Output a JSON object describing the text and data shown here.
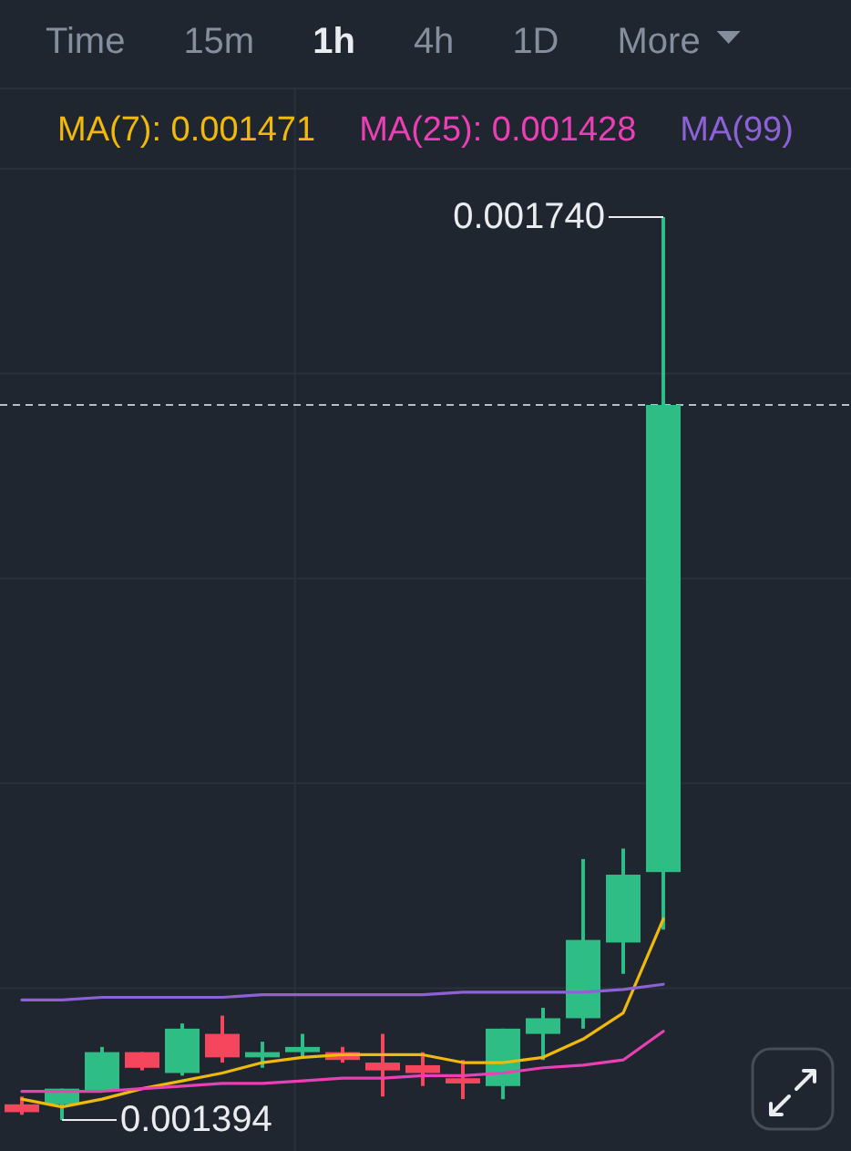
{
  "chart_data": {
    "type": "candlestick",
    "categories": [
      null,
      null,
      null,
      null,
      null,
      null,
      null,
      null,
      null,
      null,
      null,
      null,
      null,
      null,
      null,
      null,
      null
    ],
    "ohlc": [
      [
        0.0014,
        0.001403,
        0.001396,
        0.001397
      ],
      [
        0.0014,
        0.001406,
        0.001394,
        0.001406
      ],
      [
        0.001405,
        0.001422,
        0.001405,
        0.00142
      ],
      [
        0.00142,
        0.00142,
        0.001413,
        0.001414
      ],
      [
        0.001412,
        0.001431,
        0.001411,
        0.001429
      ],
      [
        0.001427,
        0.001434,
        0.001416,
        0.001418
      ],
      [
        0.001418,
        0.001424,
        0.001414,
        0.00142
      ],
      [
        0.00142,
        0.001427,
        0.001418,
        0.001422
      ],
      [
        0.00142,
        0.001422,
        0.001416,
        0.001417
      ],
      [
        0.001416,
        0.001427,
        0.001403,
        0.001413
      ],
      [
        0.001415,
        0.00142,
        0.001407,
        0.001412
      ],
      [
        0.00141,
        0.001417,
        0.001402,
        0.001408
      ],
      [
        0.001407,
        0.001429,
        0.001402,
        0.001429
      ],
      [
        0.001427,
        0.001437,
        0.001417,
        0.001433
      ],
      [
        0.001433,
        0.001494,
        0.001429,
        0.001463
      ],
      [
        0.001462,
        0.001498,
        0.00145,
        0.001488
      ],
      [
        0.001489,
        0.00174,
        0.001467,
        0.001668
      ]
    ],
    "colors": [
      "#f6465d",
      "#2ebd85",
      "#2ebd85",
      "#f6465d",
      "#2ebd85",
      "#f6465d",
      "#2ebd85",
      "#2ebd85",
      "#f6465d",
      "#f6465d",
      "#f6465d",
      "#f6465d",
      "#2ebd85",
      "#2ebd85",
      "#2ebd85",
      "#2ebd85",
      "#2ebd85"
    ],
    "series": [
      {
        "name": "MA(7): 0.001471",
        "type": "line",
        "color": "#f0b90b",
        "values": [
          0.001402,
          0.001399,
          0.001402,
          0.001406,
          0.001409,
          0.001412,
          0.001416,
          0.001418,
          0.001419,
          0.001419,
          0.001419,
          0.001416,
          0.001416,
          0.001418,
          0.001425,
          0.001435,
          0.001471
        ]
      },
      {
        "name": "MA(25): 0.001428",
        "type": "line",
        "color": "#eb40b5",
        "values": [
          0.001405,
          0.001405,
          0.001405,
          0.001406,
          0.001407,
          0.001408,
          0.001408,
          0.001409,
          0.00141,
          0.00141,
          0.001411,
          0.001411,
          0.001412,
          0.001414,
          0.001415,
          0.001417,
          0.001428
        ]
      },
      {
        "name": "MA(99)",
        "type": "line",
        "color": "#8e62d6",
        "values": [
          0.00144,
          0.00144,
          0.001441,
          0.001441,
          0.001441,
          0.001441,
          0.001442,
          0.001442,
          0.001442,
          0.001442,
          0.001442,
          0.001443,
          0.001443,
          0.001443,
          0.001443,
          0.001444,
          0.001446
        ]
      }
    ],
    "annotations": [
      "Time",
      "15m",
      "1h",
      "4h",
      "1D",
      "More",
      "0.001740",
      "0.001394"
    ],
    "ref_lines": [
      {
        "axis": "y",
        "value": 0.001668,
        "line_style": "dashed",
        "color": "#b7bdc6"
      }
    ],
    "grid": true,
    "legend": "top"
  }
}
